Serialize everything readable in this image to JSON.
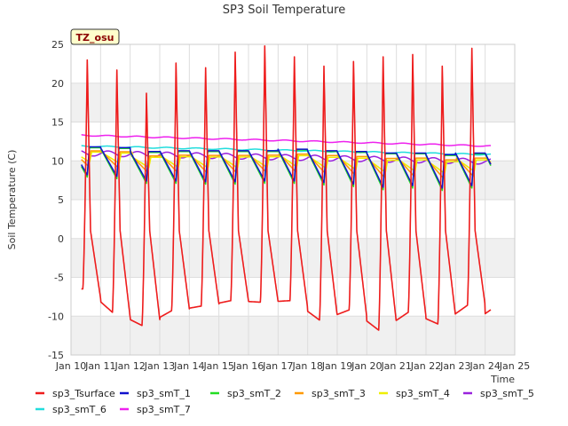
{
  "chart_data": {
    "type": "line",
    "title": "SP3 Soil Temperature",
    "xlabel": "Time",
    "ylabel": "Soil Temperature (C)",
    "annotation": "TZ_osu",
    "xlim": [
      10,
      25
    ],
    "ylim": [
      -15,
      25
    ],
    "x_ticks": [
      {
        "v": 10,
        "label": "Jan 10"
      },
      {
        "v": 11,
        "label": "Jan 11"
      },
      {
        "v": 12,
        "label": "Jan 12"
      },
      {
        "v": 13,
        "label": "Jan 13"
      },
      {
        "v": 14,
        "label": "Jan 14"
      },
      {
        "v": 15,
        "label": "Jan 15"
      },
      {
        "v": 16,
        "label": "Jan 16"
      },
      {
        "v": 17,
        "label": "Jan 17"
      },
      {
        "v": 18,
        "label": "Jan 18"
      },
      {
        "v": 19,
        "label": "Jan 19"
      },
      {
        "v": 20,
        "label": "Jan 20"
      },
      {
        "v": 21,
        "label": "Jan 21"
      },
      {
        "v": 22,
        "label": "Jan 22"
      },
      {
        "v": 23,
        "label": "Jan 23"
      },
      {
        "v": 24,
        "label": "Jan 24"
      },
      {
        "v": 25,
        "label": "Jan 25"
      }
    ],
    "y_ticks": [
      -15,
      -10,
      -5,
      0,
      5,
      10,
      15,
      20,
      25
    ],
    "grid": true,
    "legend_position": "bottom",
    "daily": {
      "days": [
        10,
        11,
        12,
        13,
        14,
        15,
        16,
        17,
        18,
        19,
        20,
        21,
        22,
        23
      ],
      "tsurface_max": [
        23.0,
        21.7,
        18.7,
        22.6,
        22.0,
        24.0,
        24.8,
        23.4,
        22.2,
        22.8,
        23.4,
        23.7,
        22.2,
        24.5
      ],
      "tsurface_min": [
        -6.5,
        -9.5,
        -11.2,
        -9.3,
        -8.7,
        -8.0,
        -8.2,
        -8.0,
        -10.5,
        -9.2,
        -11.8,
        -9.5,
        -11.0,
        -8.6
      ],
      "smt_max": [
        11.8,
        11.7,
        11.2,
        11.3,
        11.3,
        11.3,
        11.3,
        11.5,
        11.3,
        11.2,
        11.0,
        11.0,
        10.8,
        11.0
      ],
      "smt_min": [
        8.2,
        8.0,
        7.4,
        7.4,
        7.3,
        7.3,
        7.4,
        7.4,
        7.2,
        7.0,
        6.6,
        6.8,
        6.5,
        6.8
      ]
    },
    "series": [
      {
        "name": "sp3_Tsurface",
        "color": "#ee1c1c",
        "x_start": 10.35,
        "x_end": 24.2
      },
      {
        "name": "sp3_smT_1",
        "color": "#1010cc",
        "x_start": 10.35,
        "x_end": 24.2
      },
      {
        "name": "sp3_smT_2",
        "color": "#22dd22",
        "x_start": 10.35,
        "x_end": 24.2
      },
      {
        "name": "sp3_smT_3",
        "color": "#ff9900",
        "x_start": 10.35,
        "x_end": 24.2
      },
      {
        "name": "sp3_smT_4",
        "color": "#eeee00",
        "x_start": 10.35,
        "x_end": 24.2
      },
      {
        "name": "sp3_smT_5",
        "color": "#9922dd",
        "x_start": 10.35,
        "x_end": 24.2,
        "mean_start": 11.0,
        "mean_end": 9.9
      },
      {
        "name": "sp3_smT_6",
        "color": "#22dddd",
        "x_start": 10.35,
        "x_end": 24.2,
        "mean_start": 11.9,
        "mean_end": 10.8
      },
      {
        "name": "sp3_smT_7",
        "color": "#ee22ee",
        "x_start": 10.35,
        "x_end": 24.2,
        "mean_start": 13.3,
        "mean_end": 11.9
      }
    ]
  }
}
